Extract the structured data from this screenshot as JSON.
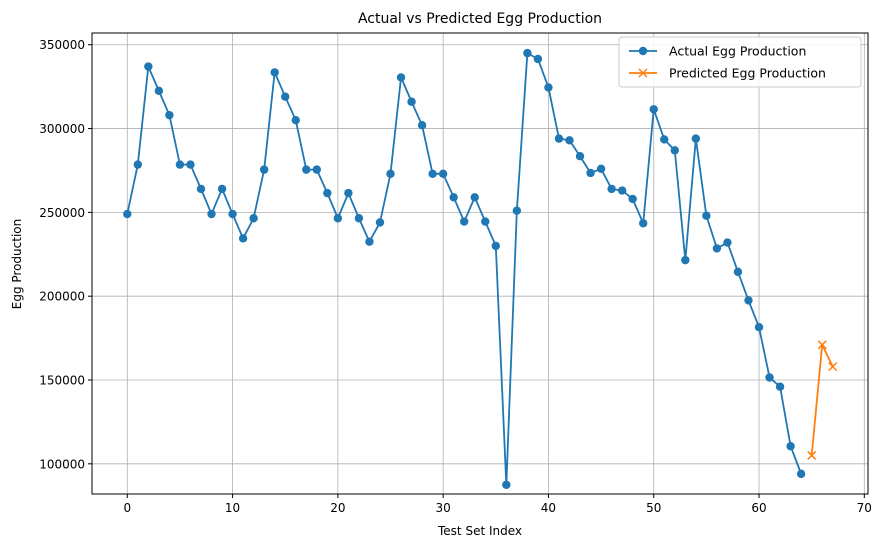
{
  "chart_data": {
    "type": "line",
    "title": "Actual vs Predicted Egg Production",
    "xlabel": "Test Set Index",
    "ylabel": "Egg Production",
    "xlim": [
      -3.35,
      70.35
    ],
    "ylim": [
      82000,
      357000
    ],
    "xticks": [
      0,
      10,
      20,
      30,
      40,
      50,
      60,
      70
    ],
    "yticks": [
      100000,
      150000,
      200000,
      250000,
      300000,
      350000
    ],
    "grid": true,
    "legend": "top-right",
    "series": [
      {
        "name": "Actual Egg Production",
        "color": "#1f77b4",
        "marker": "circle",
        "x": [
          0,
          1,
          2,
          3,
          4,
          5,
          6,
          7,
          8,
          9,
          10,
          11,
          12,
          13,
          14,
          15,
          16,
          17,
          18,
          19,
          20,
          21,
          22,
          23,
          24,
          25,
          26,
          27,
          28,
          29,
          30,
          31,
          32,
          33,
          34,
          35,
          36,
          37,
          38,
          39,
          40,
          41,
          42,
          43,
          44,
          45,
          46,
          47,
          48,
          49,
          50,
          51,
          52,
          53,
          54,
          55,
          56,
          57,
          58,
          59,
          60,
          61,
          62,
          63,
          64
        ],
        "values": [
          249000,
          278500,
          337000,
          322500,
          308000,
          278500,
          278500,
          264000,
          249000,
          264000,
          249000,
          234500,
          246500,
          275500,
          333500,
          319000,
          305000,
          275500,
          275500,
          261500,
          246500,
          261500,
          246500,
          232500,
          244000,
          273000,
          330500,
          316000,
          302000,
          273000,
          273000,
          259000,
          244500,
          259000,
          244500,
          230000,
          87500,
          251000,
          345000,
          341500,
          324500,
          294000,
          293000,
          283500,
          273500,
          276000,
          264000,
          263000,
          258000,
          243500,
          311500,
          293500,
          287000,
          221500,
          294000,
          248000,
          228500,
          232000,
          214500,
          197500,
          181500,
          151500,
          146000,
          110500,
          94000
        ]
      },
      {
        "name": "Predicted Egg Production",
        "color": "#ff7f0e",
        "marker": "x",
        "x": [
          65,
          66,
          67
        ],
        "values": [
          105000,
          171000,
          158000
        ]
      }
    ]
  }
}
